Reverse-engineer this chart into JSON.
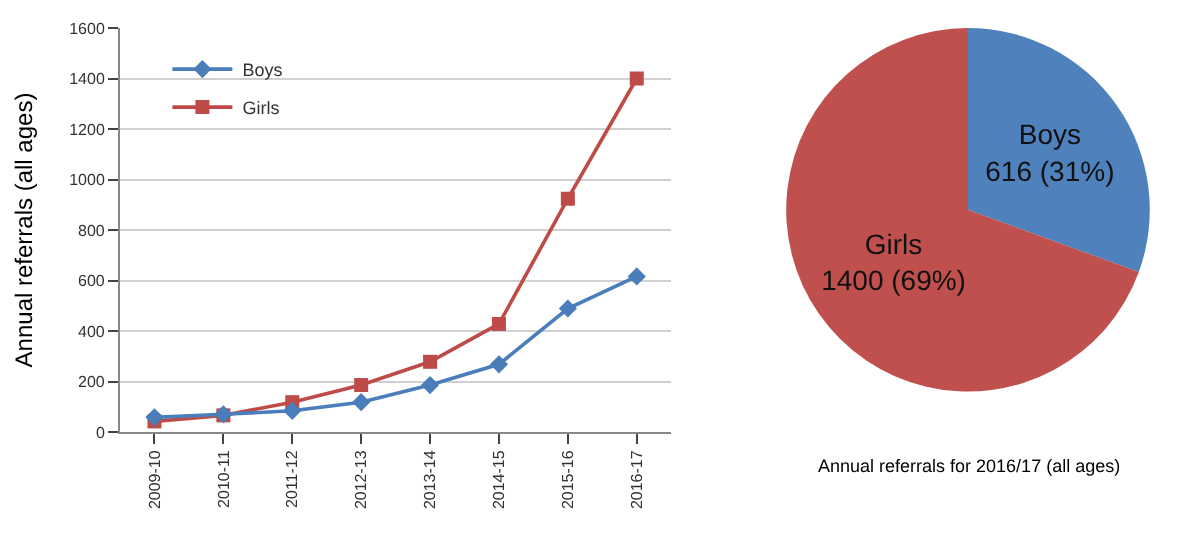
{
  "chart_data": [
    {
      "type": "line",
      "ylabel": "Annual referrals (all ages)",
      "categories": [
        "2009-10",
        "2010-11",
        "2011-12",
        "2012-13",
        "2013-14",
        "2014-15",
        "2015-16",
        "2016-17"
      ],
      "series": [
        {
          "name": "Boys",
          "color": "#4a7ebb",
          "marker": "diamond",
          "values": [
            58,
            70,
            84,
            118,
            186,
            268,
            489,
            616
          ]
        },
        {
          "name": "Girls",
          "color": "#be4b48",
          "marker": "square",
          "values": [
            42,
            66,
            118,
            186,
            278,
            428,
            924,
            1400
          ]
        }
      ],
      "ylim": [
        0,
        1600
      ],
      "yticks": [
        0,
        200,
        400,
        600,
        800,
        1000,
        1200,
        1400,
        1600
      ],
      "grid": "y",
      "legend": "top left",
      "line_style": "solid"
    },
    {
      "type": "pie",
      "title": "Annual referrals for 2016/17 (all ages)",
      "categories": [
        "Boys",
        "Girls"
      ],
      "values": [
        616,
        1400
      ],
      "colors": [
        "#4f81bd",
        "#c0504d"
      ],
      "value_labels": [
        "616 (31%)",
        "1400 (69%)"
      ],
      "legend": false
    }
  ]
}
